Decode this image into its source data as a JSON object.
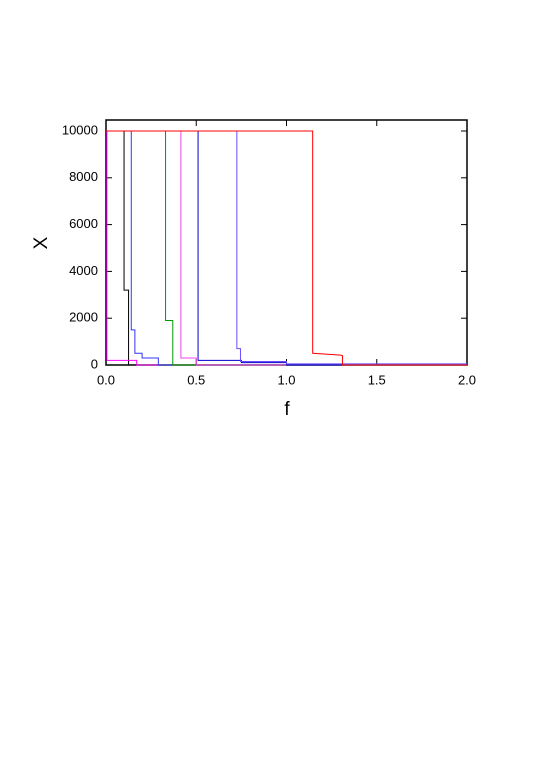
{
  "chart_data": {
    "type": "line",
    "xlabel": "f",
    "ylabel": "X",
    "xlim": [
      0,
      2.0
    ],
    "ylim": [
      0,
      10000
    ],
    "xticks": [
      {
        "value": 0,
        "label": "0.0"
      },
      0.5,
      {
        "value": 1,
        "label": "1.0"
      },
      1.5,
      {
        "value": 2,
        "label": "2.0"
      }
    ],
    "yticks": [
      0,
      2000,
      4000,
      6000,
      8000,
      10000
    ],
    "grid": false,
    "series": [
      {
        "color": "#000000",
        "x": [
          0,
          0.1,
          0.1,
          0.125,
          0.125,
          2.0
        ],
        "values": [
          10000,
          10000,
          3200,
          3200,
          0,
          0
        ]
      },
      {
        "color": "#ff00ff",
        "x": [
          0,
          0.005,
          0.005,
          0.17,
          0.17,
          2.0
        ],
        "values": [
          10000,
          10000,
          200,
          200,
          0,
          0
        ]
      },
      {
        "color": "#3333ff",
        "x": [
          0,
          0.14,
          0.14,
          0.16,
          0.16,
          0.2,
          0.2,
          0.29,
          0.29,
          2.0
        ],
        "values": [
          10000,
          10000,
          1500,
          1500,
          500,
          500,
          300,
          300,
          0,
          0
        ]
      },
      {
        "color": "#009900",
        "x": [
          0,
          0.33,
          0.33,
          0.37,
          0.37,
          2.0
        ],
        "values": [
          10000,
          10000,
          1900,
          1900,
          0,
          0
        ]
      },
      {
        "color": "#ee44ee",
        "x": [
          0,
          0.415,
          0.415,
          0.5,
          0.5,
          2.0
        ],
        "values": [
          10000,
          10000,
          300,
          300,
          0,
          0
        ]
      },
      {
        "color": "#0000cc",
        "x": [
          0,
          0.51,
          0.51,
          0.75,
          0.75,
          1.0,
          1.0,
          2.0
        ],
        "values": [
          10000,
          10000,
          200,
          200,
          100,
          100,
          0,
          0
        ]
      },
      {
        "color": "#6a4cff",
        "x": [
          0,
          0.725,
          0.725,
          0.745,
          0.745,
          1.0,
          1.0,
          2.0
        ],
        "values": [
          10000,
          10000,
          700,
          700,
          150,
          150,
          50,
          50
        ]
      },
      {
        "color": "#ff0000",
        "x": [
          0,
          1.145,
          1.145,
          1.3,
          1.31,
          1.31,
          2.0
        ],
        "values": [
          10000,
          10000,
          500,
          420,
          400,
          0,
          0
        ]
      }
    ]
  }
}
